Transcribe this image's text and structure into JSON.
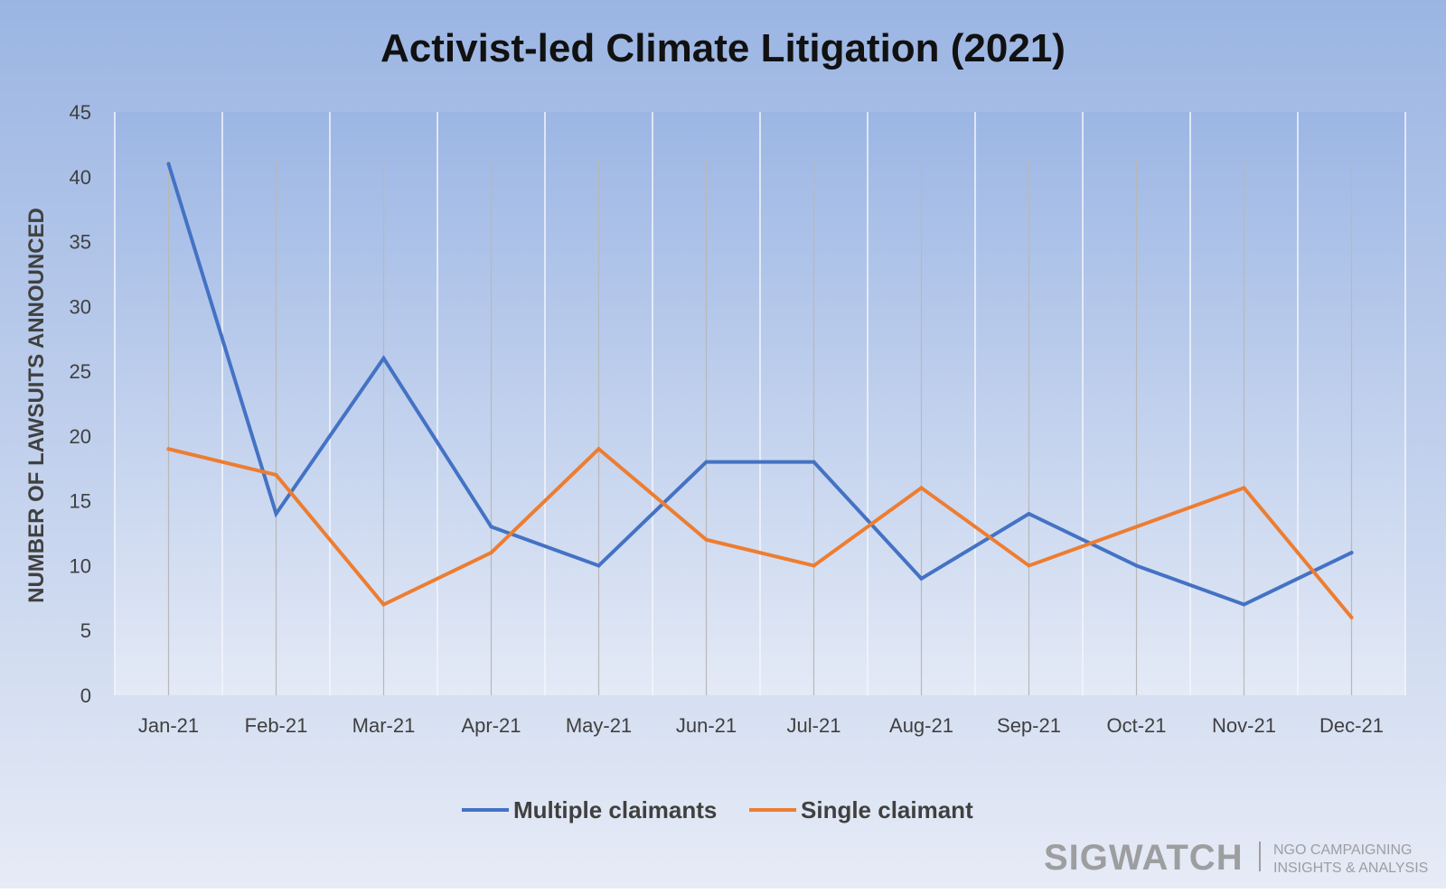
{
  "chart_data": {
    "type": "line",
    "title": "Activist-led Climate Litigation (2021)",
    "xlabel": "",
    "ylabel": "NUMBER OF LAWSUITS ANNOUNCED",
    "ylim": [
      0,
      45
    ],
    "yticks": [
      0,
      5,
      10,
      15,
      20,
      25,
      30,
      35,
      40,
      45
    ],
    "grid": true,
    "legend_position": "bottom",
    "categories": [
      "Jan-21",
      "Feb-21",
      "Mar-21",
      "Apr-21",
      "May-21",
      "Jun-21",
      "Jul-21",
      "Aug-21",
      "Sep-21",
      "Oct-21",
      "Nov-21",
      "Dec-21"
    ],
    "series": [
      {
        "name": "Multiple claimants",
        "color": "#4472C4",
        "values": [
          41,
          14,
          26,
          13,
          10,
          18,
          18,
          9,
          14,
          10,
          7,
          11
        ]
      },
      {
        "name": "Single claimant",
        "color": "#ED7D31",
        "values": [
          19,
          17,
          7,
          11,
          19,
          12,
          10,
          16,
          10,
          13,
          16,
          6
        ]
      }
    ]
  },
  "watermark": {
    "brand": "SIGWATCH",
    "tagline_line1": "NGO CAMPAIGNING",
    "tagline_line2": "INSIGHTS & ANALYSIS"
  }
}
